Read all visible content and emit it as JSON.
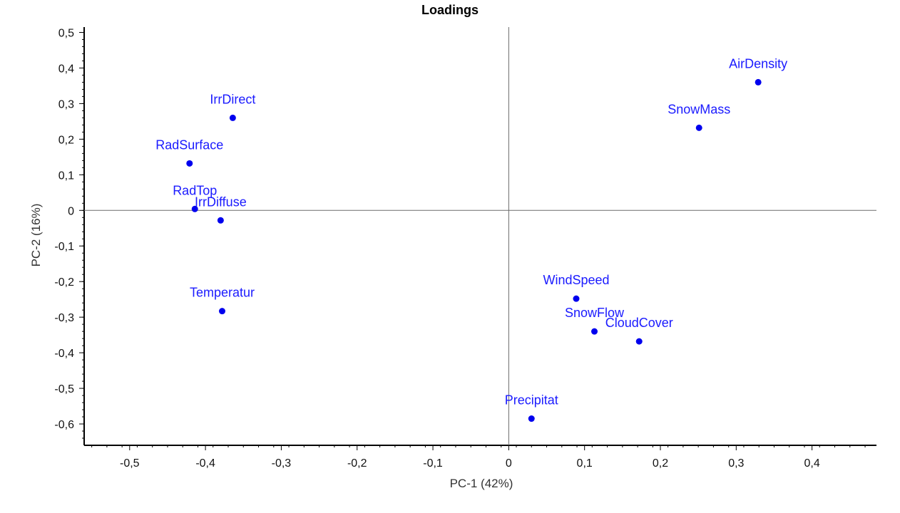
{
  "chart_data": {
    "type": "scatter",
    "title": "Loadings",
    "xlabel": "PC-1 (42%)",
    "ylabel": "PC-2 (16%)",
    "xlim": [
      -0.56,
      0.485
    ],
    "ylim": [
      -0.66,
      0.515
    ],
    "x_ticks": [
      "-0,5",
      "-0,4",
      "-0,3",
      "-0,2",
      "-0,1",
      "0",
      "0,1",
      "0,2",
      "0,3",
      "0,4"
    ],
    "x_tick_values": [
      -0.5,
      -0.4,
      -0.3,
      -0.2,
      -0.1,
      0,
      0.1,
      0.2,
      0.3,
      0.4
    ],
    "y_ticks": [
      "0,5",
      "0,4",
      "0,3",
      "0,2",
      "0,1",
      "0",
      "-0,1",
      "-0,2",
      "-0,3",
      "-0,4",
      "-0,5",
      "-0,6"
    ],
    "y_tick_values": [
      0.5,
      0.4,
      0.3,
      0.2,
      0.1,
      0,
      -0.1,
      -0.2,
      -0.3,
      -0.4,
      -0.5,
      -0.6
    ],
    "grid": false,
    "point_color": "#0000ee",
    "label_color": "#1a1aff",
    "points": [
      {
        "label": "AirDensity",
        "x": 0.329,
        "y": 0.36
      },
      {
        "label": "SnowMass",
        "x": 0.251,
        "y": 0.232
      },
      {
        "label": "IrrDirect",
        "x": -0.364,
        "y": 0.26
      },
      {
        "label": "RadSurface",
        "x": -0.421,
        "y": 0.132
      },
      {
        "label": "RadTop",
        "x": -0.414,
        "y": 0.004
      },
      {
        "label": "IrrDiffuse",
        "x": -0.38,
        "y": -0.028
      },
      {
        "label": "Temperatur",
        "x": -0.378,
        "y": -0.283
      },
      {
        "label": "WindSpeed",
        "x": 0.089,
        "y": -0.248
      },
      {
        "label": "SnowFlow",
        "x": 0.113,
        "y": -0.34
      },
      {
        "label": "CloudCover",
        "x": 0.172,
        "y": -0.368
      },
      {
        "label": "Precipitat",
        "x": 0.03,
        "y": -0.585
      }
    ]
  }
}
